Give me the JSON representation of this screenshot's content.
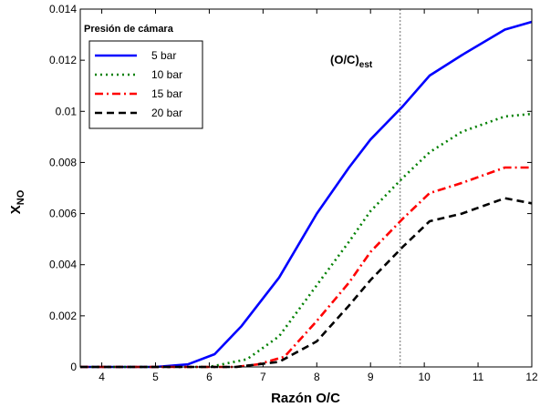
{
  "chart_data": {
    "type": "line",
    "xlabel": "Razón O/C",
    "ylabel": "X",
    "ylabel_sub": "NO",
    "xlim": [
      3.6,
      12
    ],
    "ylim": [
      0,
      0.014
    ],
    "xticks": [
      4,
      5,
      6,
      7,
      8,
      9,
      10,
      11,
      12
    ],
    "yticks": [
      0,
      0.002,
      0.004,
      0.006,
      0.008,
      0.01,
      0.012,
      0.014
    ],
    "ytick_labels": [
      "0",
      "0.002",
      "0.004",
      "0.006",
      "0.008",
      "0.01",
      "0.012",
      "0.014"
    ],
    "legend_title": "Presión de cámara",
    "legend_position": "top-left",
    "grid": false,
    "annotation": {
      "text": "(O/C)",
      "sub": "est",
      "x": 9.55
    },
    "series": [
      {
        "name": "5 bar",
        "color": "#0000ff",
        "dash": "solid",
        "x": [
          3.6,
          5.0,
          5.6,
          6.1,
          6.6,
          7.3,
          8.0,
          8.6,
          9.0,
          9.6,
          10.1,
          10.7,
          11.5,
          12.0
        ],
        "y": [
          0.0,
          0.0,
          0.0001,
          0.0005,
          0.0016,
          0.0035,
          0.006,
          0.0078,
          0.0089,
          0.0102,
          0.0114,
          0.0122,
          0.0132,
          0.0135
        ]
      },
      {
        "name": "10 bar",
        "color": "#008000",
        "dash": "dot",
        "x": [
          3.6,
          5.0,
          6.0,
          6.7,
          7.3,
          8.0,
          8.6,
          9.0,
          9.6,
          10.1,
          10.7,
          11.5,
          12.0
        ],
        "y": [
          0.0,
          0.0,
          0.0,
          0.0003,
          0.0012,
          0.0032,
          0.0049,
          0.0061,
          0.0074,
          0.0084,
          0.0092,
          0.0098,
          0.0099
        ]
      },
      {
        "name": "15 bar",
        "color": "#ff0000",
        "dash": "dashdot",
        "x": [
          3.6,
          5.0,
          6.5,
          6.9,
          7.4,
          8.0,
          8.6,
          9.0,
          9.6,
          10.1,
          10.7,
          11.5,
          12.0
        ],
        "y": [
          0.0,
          0.0,
          0.0,
          0.0001,
          0.0004,
          0.0018,
          0.0033,
          0.0045,
          0.0058,
          0.0068,
          0.0072,
          0.0078,
          0.0078
        ]
      },
      {
        "name": "20 bar",
        "color": "#000000",
        "dash": "dash",
        "x": [
          3.6,
          5.0,
          6.5,
          7.3,
          8.0,
          8.6,
          9.0,
          9.6,
          10.1,
          10.7,
          11.5,
          12.0
        ],
        "y": [
          0.0,
          0.0,
          0.0,
          0.0002,
          0.001,
          0.0024,
          0.0034,
          0.0047,
          0.0057,
          0.006,
          0.0066,
          0.0064
        ]
      }
    ]
  }
}
